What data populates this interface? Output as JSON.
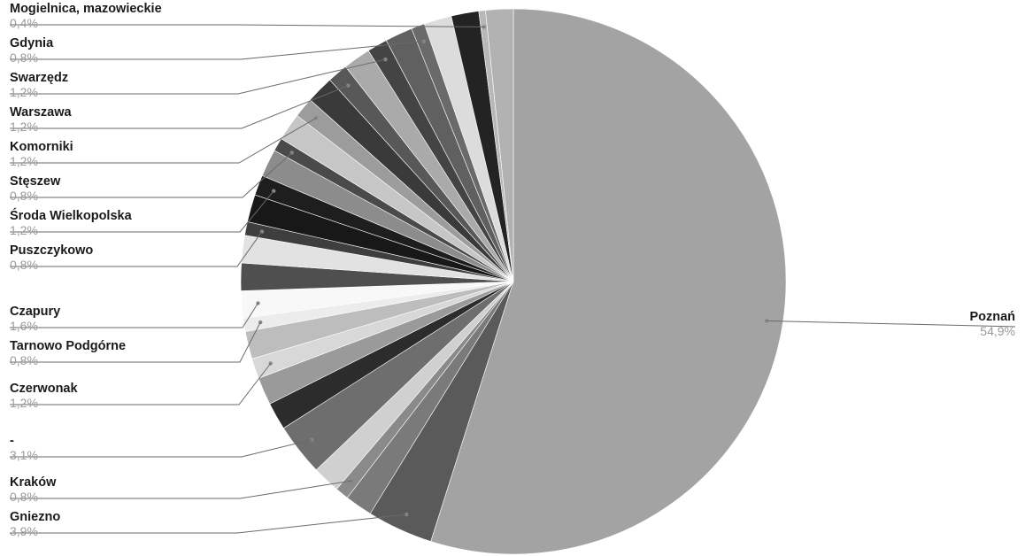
{
  "chart_data": {
    "type": "pie",
    "labeled_slices": [
      {
        "name": "Poznań",
        "value": 54.9,
        "display": "54,9%",
        "side": "right",
        "color": "#a3a3a3"
      },
      {
        "name": "Gniezno",
        "value": 3.9,
        "display": "3,9%",
        "side": "left",
        "color": "#5a5a5a"
      },
      {
        "name": "Kraków",
        "value": 0.8,
        "display": "0,8%",
        "side": "left",
        "color": "#8a8a8a"
      },
      {
        "name": "-",
        "value": 3.1,
        "display": "3,1%",
        "side": "left",
        "color": "#6e6e6e"
      },
      {
        "name": "Czerwonak",
        "value": 1.2,
        "display": "1,2%",
        "side": "left",
        "color": "#d8d8d8"
      },
      {
        "name": "Tarnowo Podgórne",
        "value": 0.8,
        "display": "0,8%",
        "side": "left",
        "color": "#ececec"
      },
      {
        "name": "Czapury",
        "value": 1.6,
        "display": "1,6%",
        "side": "left",
        "color": "#f8f8f8"
      },
      {
        "name": "Puszczykowo",
        "value": 0.8,
        "display": "0,8%",
        "side": "left",
        "color": "#3e3e3e"
      },
      {
        "name": "Środa Wielkopolska",
        "value": 1.2,
        "display": "1,2%",
        "side": "left",
        "color": "#1e1e1e"
      },
      {
        "name": "Stęszew",
        "value": 0.8,
        "display": "0,8%",
        "side": "left",
        "color": "#4a4a4a"
      },
      {
        "name": "Komorniki",
        "value": 1.2,
        "display": "1,2%",
        "side": "left",
        "color": "#9c9c9c"
      },
      {
        "name": "Warszawa",
        "value": 1.2,
        "display": "1,2%",
        "side": "left",
        "color": "#585858"
      },
      {
        "name": "Swarzędz",
        "value": 1.2,
        "display": "1,2%",
        "side": "left",
        "color": "#444444"
      },
      {
        "name": "Gdynia",
        "value": 0.8,
        "display": "0,8%",
        "side": "left",
        "color": "#6a6a6a"
      },
      {
        "name": "Mogielnica, mazowieckie",
        "value": 0.4,
        "display": "0,4%",
        "side": "left",
        "color": "#b8b8b8"
      }
    ],
    "unlabeled_slice_colors": [
      "#7a7a7a",
      "#d0d0d0",
      "#2c2c2c",
      "#9a9a9a",
      "#bdbdbd",
      "#4f4f4f",
      "#e2e2e2",
      "#181818",
      "#8c8c8c",
      "#c6c6c6",
      "#3a3a3a",
      "#aaaaaa",
      "#606060",
      "#dcdcdc",
      "#232323",
      "#b2b2b2"
    ]
  }
}
